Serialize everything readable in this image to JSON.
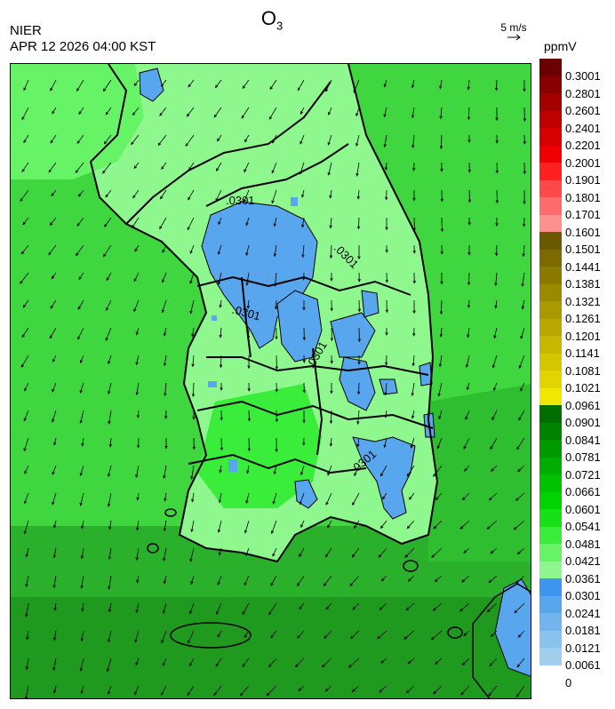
{
  "header": {
    "title_main": "O",
    "title_sub": "3",
    "org": "NIER",
    "timestamp": "APR 12 2026 04:00 KST",
    "ref_vector_label": "5 m/s",
    "unit": "ppmV"
  },
  "map": {
    "contour_labels": [
      ".0301",
      ".0301",
      ".0301",
      ".0301",
      ".0301"
    ]
  },
  "colorbar": {
    "labels": [
      "0.3001",
      "0.2801",
      "0.2601",
      "0.2401",
      "0.2201",
      "0.2001",
      "0.1901",
      "0.1801",
      "0.1701",
      "0.1601",
      "0.1501",
      "0.1441",
      "0.1381",
      "0.1321",
      "0.1261",
      "0.1201",
      "0.1141",
      "0.1081",
      "0.1021",
      "0.0961",
      "0.0901",
      "0.0841",
      "0.0781",
      "0.0721",
      "0.0661",
      "0.0601",
      "0.0541",
      "0.0481",
      "0.0421",
      "0.0361",
      "0.0301",
      "0.0241",
      "0.0181",
      "0.0121",
      "0.0061",
      "0"
    ],
    "colors": [
      "#6a0000",
      "#880000",
      "#a50000",
      "#bf0000",
      "#d80000",
      "#f00000",
      "#ff2020",
      "#ff4848",
      "#ff6a6a",
      "#ff9090",
      "#6b5a00",
      "#7b6b00",
      "#8a7a00",
      "#9a8a00",
      "#a89a00",
      "#b8a800",
      "#c6b800",
      "#d4c600",
      "#e2d400",
      "#f0e800",
      "#006e00",
      "#008400",
      "#009a00",
      "#00ae00",
      "#00c200",
      "#00d400",
      "#18e018",
      "#3aed3a",
      "#66f366",
      "#8ef78e",
      "#3c96ee",
      "#58a6ee",
      "#72b4ee",
      "#8ac2ee",
      "#a2cfee"
    ]
  }
}
